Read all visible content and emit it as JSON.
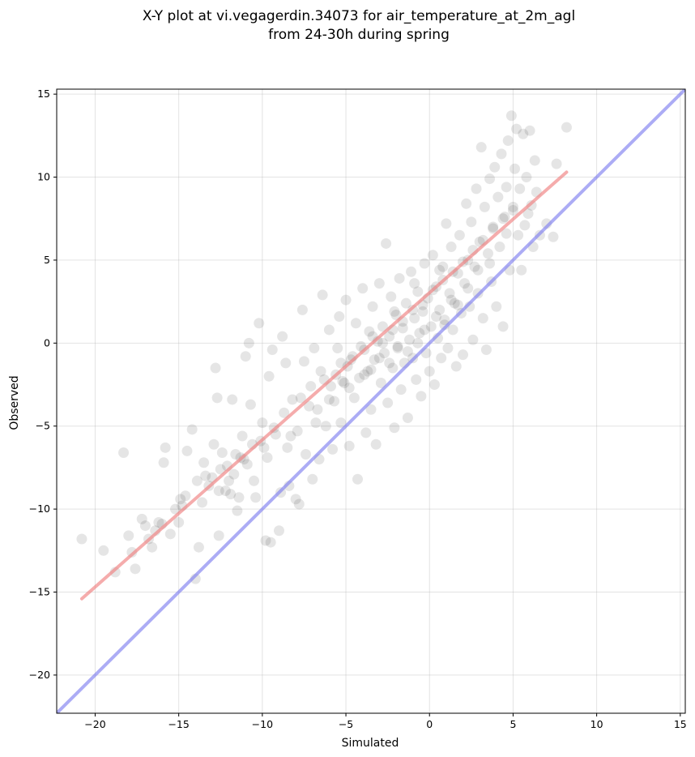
{
  "chart_data": {
    "type": "scatter",
    "title_line1": "X-Y plot at vi.vegagerdin.34073 for air_temperature_at_2m_agl",
    "title_line2": "from 24-30h during spring",
    "xlabel": "Simulated",
    "ylabel": "Observed",
    "xlim": [
      -22.3,
      15.3
    ],
    "ylim": [
      -22.3,
      15.3
    ],
    "xticks": [
      -20,
      -15,
      -10,
      -5,
      0,
      5,
      10,
      15
    ],
    "yticks": [
      -20,
      -15,
      -10,
      -5,
      0,
      5,
      10,
      15
    ],
    "tick_labels": [
      "−20",
      "−15",
      "−10",
      "−5",
      "0",
      "5",
      "10",
      "15"
    ],
    "grid": true,
    "point_color": "#000000",
    "point_alpha": 0.1,
    "points": [
      [
        -20.8,
        -11.8
      ],
      [
        -18.8,
        -13.8
      ],
      [
        -18.3,
        -6.6
      ],
      [
        -18.0,
        -11.6
      ],
      [
        -17.8,
        -12.6
      ],
      [
        -17.6,
        -13.6
      ],
      [
        -17.0,
        -11.0
      ],
      [
        -16.8,
        -11.8
      ],
      [
        -16.6,
        -12.3
      ],
      [
        -16.4,
        -11.3
      ],
      [
        -16.2,
        -10.8
      ],
      [
        -16.0,
        -10.9
      ],
      [
        -15.9,
        -7.2
      ],
      [
        -15.8,
        -6.3
      ],
      [
        -15.5,
        -11.5
      ],
      [
        -15.2,
        -10.0
      ],
      [
        -15.0,
        -10.8
      ],
      [
        -14.8,
        -9.8
      ],
      [
        -14.6,
        -9.2
      ],
      [
        -14.5,
        -6.5
      ],
      [
        -14.2,
        -5.2
      ],
      [
        -14.0,
        -14.2
      ],
      [
        -13.8,
        -12.3
      ],
      [
        -13.6,
        -9.6
      ],
      [
        -13.5,
        -7.2
      ],
      [
        -13.2,
        -8.6
      ],
      [
        -13.0,
        -8.1
      ],
      [
        -12.9,
        -6.1
      ],
      [
        -12.8,
        -1.5
      ],
      [
        -12.7,
        -3.3
      ],
      [
        -12.6,
        -11.6
      ],
      [
        -12.5,
        -7.6
      ],
      [
        -12.4,
        -6.6
      ],
      [
        -12.2,
        -8.9
      ],
      [
        -12.0,
        -8.3
      ],
      [
        -11.9,
        -9.1
      ],
      [
        -11.8,
        -3.4
      ],
      [
        -11.7,
        -7.9
      ],
      [
        -11.6,
        -6.7
      ],
      [
        -11.5,
        -10.1
      ],
      [
        -11.4,
        -9.3
      ],
      [
        -11.2,
        -5.6
      ],
      [
        -11.0,
        -0.8
      ],
      [
        -10.9,
        -7.3
      ],
      [
        -10.8,
        0.0
      ],
      [
        -10.7,
        -3.7
      ],
      [
        -10.6,
        -6.1
      ],
      [
        -10.5,
        -8.3
      ],
      [
        -10.4,
        -9.3
      ],
      [
        -10.2,
        1.2
      ],
      [
        -10.0,
        -4.8
      ],
      [
        -9.9,
        -6.3
      ],
      [
        -9.8,
        -11.9
      ],
      [
        -9.6,
        -2.0
      ],
      [
        -9.5,
        -12.0
      ],
      [
        -9.4,
        -0.4
      ],
      [
        -9.2,
        -5.5
      ],
      [
        -9.0,
        -11.3
      ],
      [
        -8.9,
        -9.0
      ],
      [
        -8.8,
        0.4
      ],
      [
        -8.6,
        -1.2
      ],
      [
        -8.5,
        -6.3
      ],
      [
        -8.4,
        -8.6
      ],
      [
        -8.2,
        -3.4
      ],
      [
        -8.0,
        -9.4
      ],
      [
        -7.9,
        -5.3
      ],
      [
        -7.8,
        -9.7
      ],
      [
        -7.6,
        2.0
      ],
      [
        -7.5,
        -1.1
      ],
      [
        -7.4,
        -6.7
      ],
      [
        -7.2,
        -3.8
      ],
      [
        -7.0,
        -8.2
      ],
      [
        -6.9,
        -0.3
      ],
      [
        -6.8,
        -4.8
      ],
      [
        -6.6,
        -7.0
      ],
      [
        -6.5,
        -1.7
      ],
      [
        -6.4,
        2.9
      ],
      [
        -6.2,
        -5.0
      ],
      [
        -6.0,
        0.8
      ],
      [
        -5.9,
        -2.6
      ],
      [
        -5.8,
        -6.4
      ],
      [
        -5.7,
        -3.5
      ],
      [
        -5.5,
        -0.3
      ],
      [
        -5.4,
        1.6
      ],
      [
        -5.3,
        -4.8
      ],
      [
        -5.2,
        -2.3
      ],
      [
        -5.0,
        2.6
      ],
      [
        -4.9,
        -1.4
      ],
      [
        -4.8,
        -6.2
      ],
      [
        -4.6,
        -0.8
      ],
      [
        -4.5,
        -3.3
      ],
      [
        -4.4,
        1.2
      ],
      [
        -4.3,
        -8.2
      ],
      [
        -4.2,
        -2.1
      ],
      [
        -4.0,
        3.3
      ],
      [
        -3.9,
        -0.4
      ],
      [
        -3.8,
        -5.4
      ],
      [
        -3.7,
        -1.7
      ],
      [
        -3.6,
        0.7
      ],
      [
        -3.5,
        -4.0
      ],
      [
        -3.4,
        2.2
      ],
      [
        -3.3,
        -1.0
      ],
      [
        -3.2,
        -6.1
      ],
      [
        -3.1,
        0.1
      ],
      [
        -3.0,
        3.6
      ],
      [
        -2.9,
        -2.4
      ],
      [
        -2.8,
        1.0
      ],
      [
        -2.7,
        -0.6
      ],
      [
        -2.6,
        6.0
      ],
      [
        -2.5,
        -3.6
      ],
      [
        -2.4,
        0.4
      ],
      [
        -2.3,
        2.8
      ],
      [
        -2.2,
        -1.5
      ],
      [
        -2.1,
        -5.1
      ],
      [
        -2.0,
        1.7
      ],
      [
        -1.9,
        -0.2
      ],
      [
        -1.8,
        3.9
      ],
      [
        -1.7,
        -2.8
      ],
      [
        -1.6,
        0.9
      ],
      [
        -1.5,
        -1.2
      ],
      [
        -1.4,
        2.4
      ],
      [
        -1.3,
        -4.5
      ],
      [
        -1.2,
        0.2
      ],
      [
        -1.1,
        4.3
      ],
      [
        -1.0,
        -0.9
      ],
      [
        -0.9,
        1.5
      ],
      [
        -0.8,
        -2.2
      ],
      [
        -0.7,
        3.1
      ],
      [
        -0.6,
        0.6
      ],
      [
        -0.5,
        -3.2
      ],
      [
        -0.4,
        1.9
      ],
      [
        -0.3,
        4.8
      ],
      [
        -0.2,
        -0.6
      ],
      [
        -0.1,
        2.7
      ],
      [
        0.0,
        -1.7
      ],
      [
        0.1,
        1.0
      ],
      [
        0.2,
        5.3
      ],
      [
        0.3,
        -2.5
      ],
      [
        0.4,
        3.4
      ],
      [
        0.5,
        0.3
      ],
      [
        0.6,
        2.0
      ],
      [
        0.7,
        -0.9
      ],
      [
        0.8,
        4.6
      ],
      [
        0.9,
        1.4
      ],
      [
        1.0,
        7.2
      ],
      [
        1.1,
        -0.3
      ],
      [
        1.2,
        3.0
      ],
      [
        1.3,
        5.8
      ],
      [
        1.4,
        0.8
      ],
      [
        1.5,
        2.4
      ],
      [
        1.6,
        -1.4
      ],
      [
        1.7,
        4.2
      ],
      [
        1.8,
        6.5
      ],
      [
        1.9,
        1.8
      ],
      [
        2.0,
        -0.7
      ],
      [
        2.1,
        3.6
      ],
      [
        2.2,
        8.4
      ],
      [
        2.3,
        5.0
      ],
      [
        2.4,
        2.2
      ],
      [
        2.5,
        7.3
      ],
      [
        2.6,
        0.2
      ],
      [
        2.7,
        4.6
      ],
      [
        2.8,
        9.3
      ],
      [
        2.9,
        3.0
      ],
      [
        3.0,
        6.1
      ],
      [
        3.1,
        11.8
      ],
      [
        3.2,
        1.5
      ],
      [
        3.3,
        8.2
      ],
      [
        3.4,
        -0.4
      ],
      [
        3.5,
        5.4
      ],
      [
        3.6,
        9.9
      ],
      [
        3.7,
        3.7
      ],
      [
        3.8,
        7.0
      ],
      [
        3.9,
        10.6
      ],
      [
        4.0,
        2.2
      ],
      [
        4.1,
        8.8
      ],
      [
        4.2,
        5.8
      ],
      [
        4.3,
        11.4
      ],
      [
        4.4,
        1.0
      ],
      [
        4.5,
        7.6
      ],
      [
        4.6,
        9.4
      ],
      [
        4.7,
        12.2
      ],
      [
        4.8,
        4.4
      ],
      [
        4.9,
        13.7
      ],
      [
        5.0,
        8.2
      ],
      [
        5.1,
        10.5
      ],
      [
        5.2,
        12.9
      ],
      [
        5.3,
        6.5
      ],
      [
        5.4,
        9.3
      ],
      [
        5.5,
        4.4
      ],
      [
        5.6,
        12.6
      ],
      [
        5.7,
        7.1
      ],
      [
        5.8,
        10.0
      ],
      [
        6.0,
        12.8
      ],
      [
        6.1,
        8.3
      ],
      [
        6.2,
        5.8
      ],
      [
        6.3,
        11.0
      ],
      [
        6.4,
        9.1
      ],
      [
        6.6,
        6.5
      ],
      [
        7.0,
        7.2
      ],
      [
        7.4,
        6.4
      ],
      [
        7.6,
        10.8
      ],
      [
        8.2,
        13.0
      ],
      [
        -19.5,
        -12.5
      ],
      [
        -17.2,
        -10.6
      ],
      [
        -14.9,
        -9.4
      ],
      [
        -13.4,
        -8.0
      ],
      [
        -12.1,
        -7.4
      ],
      [
        -11.3,
        -6.9
      ],
      [
        -10.1,
        -5.9
      ],
      [
        -9.3,
        -5.1
      ],
      [
        -8.7,
        -4.2
      ],
      [
        -7.7,
        -3.3
      ],
      [
        -7.1,
        -2.6
      ],
      [
        -6.3,
        -2.2
      ],
      [
        -5.6,
        -1.9
      ],
      [
        -4.7,
        -1.0
      ],
      [
        -4.1,
        -0.2
      ],
      [
        -3.4,
        0.4
      ],
      [
        -2.8,
        0.0
      ],
      [
        -2.2,
        0.8
      ],
      [
        -1.6,
        1.3
      ],
      [
        -1.0,
        2.0
      ],
      [
        -0.4,
        2.3
      ],
      [
        0.2,
        3.2
      ],
      [
        0.8,
        3.8
      ],
      [
        1.4,
        4.3
      ],
      [
        2.0,
        4.9
      ],
      [
        2.6,
        5.6
      ],
      [
        3.2,
        6.2
      ],
      [
        3.8,
        6.9
      ],
      [
        4.4,
        7.5
      ],
      [
        5.0,
        8.0
      ],
      [
        -13.9,
        -8.3
      ],
      [
        -12.6,
        -8.9
      ],
      [
        -11.1,
        -7.0
      ],
      [
        -9.7,
        -6.9
      ],
      [
        -8.3,
        -5.6
      ],
      [
        -6.7,
        -4.0
      ],
      [
        -5.1,
        -2.4
      ],
      [
        -3.5,
        -1.6
      ],
      [
        -1.9,
        -0.3
      ],
      [
        -0.3,
        0.8
      ],
      [
        1.3,
        2.6
      ],
      [
        2.9,
        4.4
      ],
      [
        -4.8,
        -2.7
      ],
      [
        -3.9,
        -1.9
      ],
      [
        -2.4,
        -1.2
      ],
      [
        -1.3,
        -0.5
      ],
      [
        0.4,
        1.6
      ],
      [
        1.7,
        2.3
      ],
      [
        -6.0,
        -3.4
      ],
      [
        -5.3,
        -1.2
      ],
      [
        -3.0,
        -0.9
      ],
      [
        -0.7,
        0.0
      ],
      [
        0.9,
        1.1
      ],
      [
        2.3,
        3.3
      ],
      [
        3.6,
        4.8
      ],
      [
        4.6,
        6.6
      ],
      [
        5.9,
        7.8
      ],
      [
        -2.1,
        1.9
      ],
      [
        -0.9,
        3.6
      ],
      [
        0.6,
        4.4
      ]
    ],
    "series": [
      {
        "kind": "fit-line",
        "color": "#f08080",
        "x": [
          -20.8,
          8.2
        ],
        "y": [
          -15.4,
          10.3
        ]
      },
      {
        "kind": "identity-line",
        "color": "#8080f0",
        "x": [
          -22.3,
          15.3
        ],
        "y": [
          -22.3,
          15.3
        ]
      }
    ]
  }
}
